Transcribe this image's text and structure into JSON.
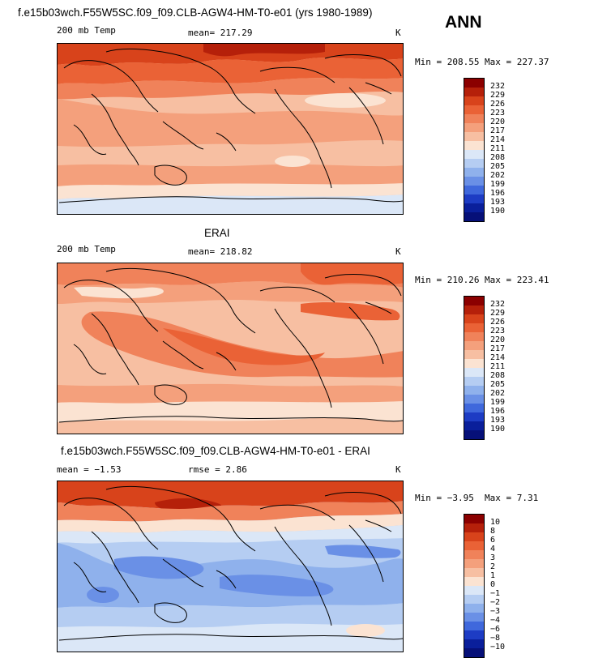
{
  "header": {
    "title": "f.e15b03wch.F55W5SC.f09_f09.CLB-AGW4-HM-T0-e01 (yrs 1980-1989)",
    "season": "ANN"
  },
  "panels": [
    {
      "left_label": "200 mb Temp",
      "center_label": "mean= 217.29",
      "units": "K",
      "min_label": "Min = 208.55",
      "max_label": "Max = 227.37"
    },
    {
      "title": "ERAI",
      "left_label": "200 mb Temp",
      "center_label": "mean= 218.82",
      "units": "K",
      "min_label": "Min = 210.26",
      "max_label": "Max = 223.41"
    },
    {
      "title": "f.e15b03wch.F55W5SC.f09_f09.CLB-AGW4-HM-T0-e01 - ERAI",
      "left_label": "mean = −1.53",
      "center_label": "rmse =  2.86",
      "units": "K",
      "min_label": "Min = −3.95",
      "max_label": "Max =  7.31"
    }
  ],
  "legends": {
    "temp": [
      "232",
      "229",
      "226",
      "223",
      "220",
      "217",
      "214",
      "211",
      "208",
      "205",
      "202",
      "199",
      "196",
      "193",
      "190"
    ],
    "diff": [
      "10",
      "8",
      "6",
      "4",
      "3",
      "2",
      "1",
      "0",
      "−1",
      "−2",
      "−3",
      "−4",
      "−6",
      "−8",
      "−10"
    ],
    "colors": [
      "#8b0000",
      "#b5200a",
      "#d8431b",
      "#ea6236",
      "#f0825a",
      "#f4a07c",
      "#f7bfa2",
      "#fbe3d2",
      "#dbe7f7",
      "#b5cdf2",
      "#8fb1ec",
      "#6a90e6",
      "#3f68dc",
      "#1d3cc4",
      "#0a1f9b",
      "#061078"
    ]
  }
}
